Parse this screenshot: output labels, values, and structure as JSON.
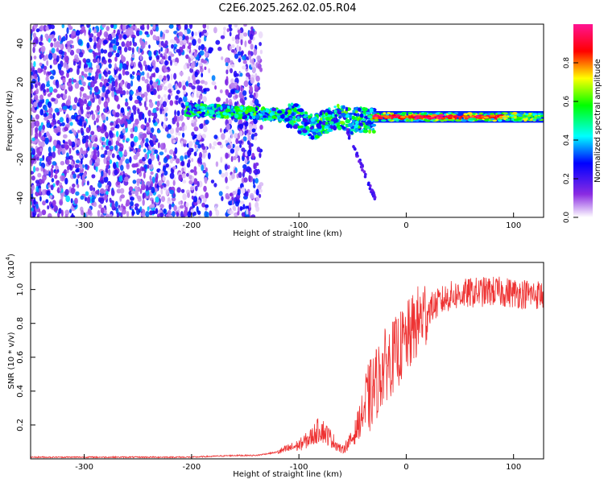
{
  "title": "C2E6.2025.262.02.05.R04",
  "chart_data": [
    {
      "type": "heatmap",
      "xlabel": "Height of straight line (km)",
      "ylabel": "Frequency (Hz)",
      "xlim": [
        -350,
        128
      ],
      "ylim": [
        -50,
        50
      ],
      "xticks": [
        -300,
        -200,
        -100,
        0,
        100
      ],
      "xtick_labels": [
        "-300",
        "-200",
        "-100",
        "0",
        "100"
      ],
      "yticks": [
        -40,
        -20,
        0,
        20,
        40
      ],
      "ytick_labels": [
        "-40",
        "-20",
        "0",
        "20",
        "40"
      ],
      "colorbar": {
        "label": "Normalized spectral amplitude",
        "range": [
          0,
          1
        ],
        "ticks": [
          0.0,
          0.2,
          0.4,
          0.6,
          0.8
        ],
        "tick_labels": [
          "0.0",
          "0.2",
          "0.4",
          "0.6",
          "0.8"
        ],
        "colors": [
          "#ffffff",
          "#8a2be2",
          "#0000ff",
          "#00ffff",
          "#00ff00",
          "#ffff00",
          "#ff0000",
          "#ff1493"
        ]
      },
      "features": [
        {
          "name": "broadband noise",
          "x_range": [
            -350,
            -135
          ],
          "y_range": [
            -50,
            50
          ],
          "amplitude": 0.15
        },
        {
          "name": "carrier band",
          "x_range": [
            -205,
            -30
          ],
          "y_center_start": 6,
          "y_center_end": 0,
          "amplitude": 0.4
        },
        {
          "name": "stable carrier",
          "x_range": [
            -30,
            128
          ],
          "y_center": 2,
          "amplitude": 0.95
        },
        {
          "name": "descending trail",
          "x_range": [
            -55,
            -28
          ],
          "y_start": -5,
          "y_end": -42,
          "amplitude": 0.15
        }
      ]
    },
    {
      "type": "line",
      "xlabel": "Height of straight line (km)",
      "ylabel": "SNR (10 * v/v)",
      "y_multiplier": "(x10",
      "y_multiplier_exp": "4",
      "y_multiplier_close": ")",
      "xlim": [
        -350,
        128
      ],
      "ylim": [
        0,
        1.16
      ],
      "xticks": [
        -300,
        -200,
        -100,
        0,
        100
      ],
      "xtick_labels": [
        "-300",
        "-200",
        "-100",
        "0",
        "100"
      ],
      "yticks": [
        0.2,
        0.4,
        0.6,
        0.8,
        1.0
      ],
      "ytick_labels": [
        "0.2",
        "0.4",
        "0.6",
        "0.8",
        "1.0"
      ],
      "series": [
        {
          "name": "SNR",
          "color": "#ee3333",
          "x": [
            -350,
            -300,
            -250,
            -200,
            -180,
            -160,
            -140,
            -120,
            -100,
            -90,
            -80,
            -70,
            -60,
            -50,
            -40,
            -30,
            -20,
            -10,
            0,
            10,
            20,
            30,
            40,
            60,
            80,
            100,
            120,
            128
          ],
          "y": [
            0.01,
            0.01,
            0.01,
            0.01,
            0.015,
            0.02,
            0.02,
            0.04,
            0.08,
            0.12,
            0.18,
            0.12,
            0.05,
            0.12,
            0.28,
            0.42,
            0.55,
            0.62,
            0.7,
            0.8,
            0.88,
            0.92,
            0.96,
            0.98,
            0.99,
            0.98,
            0.97,
            0.97
          ]
        }
      ]
    }
  ]
}
